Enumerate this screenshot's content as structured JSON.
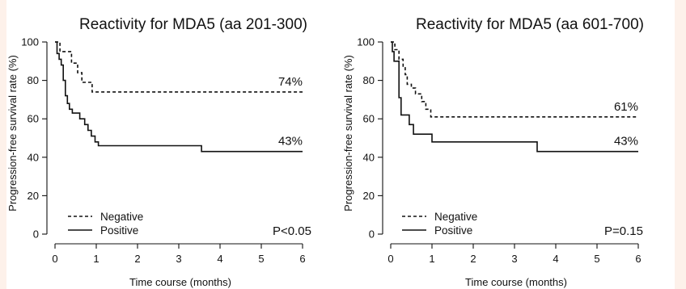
{
  "chart_data": [
    {
      "type": "line",
      "title": "Reactivity for MDA5 (aa 201-300)",
      "xlabel": "Time course (months)",
      "ylabel": "Progression-free survival rate (%)",
      "xlim": [
        0,
        6
      ],
      "ylim": [
        0,
        100
      ],
      "x_ticks": [
        0,
        1,
        2,
        3,
        4,
        5,
        6
      ],
      "y_ticks": [
        0,
        20,
        40,
        60,
        80,
        100
      ],
      "series": [
        {
          "name": "Negative",
          "style": "dashed",
          "color": "#111111",
          "points": [
            [
              0,
              100
            ],
            [
              0.12,
              100
            ],
            [
              0.12,
              95
            ],
            [
              0.4,
              95
            ],
            [
              0.4,
              89
            ],
            [
              0.55,
              89
            ],
            [
              0.55,
              84
            ],
            [
              0.65,
              84
            ],
            [
              0.65,
              79
            ],
            [
              0.9,
              79
            ],
            [
              0.9,
              74
            ],
            [
              6,
              74
            ]
          ],
          "end_label": "74%"
        },
        {
          "name": "Positive",
          "style": "solid",
          "color": "#111111",
          "points": [
            [
              0,
              100
            ],
            [
              0.05,
              100
            ],
            [
              0.05,
              94
            ],
            [
              0.1,
              94
            ],
            [
              0.1,
              91
            ],
            [
              0.15,
              91
            ],
            [
              0.15,
              88
            ],
            [
              0.2,
              88
            ],
            [
              0.2,
              80
            ],
            [
              0.25,
              80
            ],
            [
              0.25,
              72
            ],
            [
              0.3,
              72
            ],
            [
              0.3,
              68
            ],
            [
              0.35,
              68
            ],
            [
              0.35,
              65
            ],
            [
              0.42,
              65
            ],
            [
              0.42,
              63
            ],
            [
              0.6,
              63
            ],
            [
              0.6,
              60
            ],
            [
              0.72,
              60
            ],
            [
              0.72,
              57
            ],
            [
              0.8,
              57
            ],
            [
              0.8,
              54
            ],
            [
              0.88,
              54
            ],
            [
              0.88,
              51
            ],
            [
              0.97,
              51
            ],
            [
              0.97,
              48
            ],
            [
              1.05,
              48
            ],
            [
              1.05,
              46
            ],
            [
              3.55,
              46
            ],
            [
              3.55,
              43
            ],
            [
              6,
              43
            ]
          ],
          "end_label": "43%"
        }
      ],
      "legend": [
        "Negative",
        "Positive"
      ],
      "legend_position": "bottom-left",
      "p_value": "P<0.05"
    },
    {
      "type": "line",
      "title": "Reactivity for MDA5 (aa 601-700)",
      "xlabel": "Time course (months)",
      "ylabel": "Progression-free survival rate (%)",
      "xlim": [
        0,
        6
      ],
      "ylim": [
        0,
        100
      ],
      "x_ticks": [
        0,
        1,
        2,
        3,
        4,
        5,
        6
      ],
      "y_ticks": [
        0,
        20,
        40,
        60,
        80,
        100
      ],
      "series": [
        {
          "name": "Negative",
          "style": "dashed",
          "color": "#111111",
          "points": [
            [
              0,
              100
            ],
            [
              0.1,
              100
            ],
            [
              0.1,
              96
            ],
            [
              0.2,
              96
            ],
            [
              0.2,
              91
            ],
            [
              0.3,
              91
            ],
            [
              0.3,
              87
            ],
            [
              0.35,
              87
            ],
            [
              0.35,
              83
            ],
            [
              0.4,
              83
            ],
            [
              0.4,
              78
            ],
            [
              0.5,
              78
            ],
            [
              0.5,
              76
            ],
            [
              0.6,
              76
            ],
            [
              0.6,
              73
            ],
            [
              0.75,
              73
            ],
            [
              0.75,
              69
            ],
            [
              0.85,
              69
            ],
            [
              0.85,
              65
            ],
            [
              0.97,
              65
            ],
            [
              0.97,
              61
            ],
            [
              6,
              61
            ]
          ],
          "end_label": "61%"
        },
        {
          "name": "Positive",
          "style": "solid",
          "color": "#111111",
          "points": [
            [
              0,
              100
            ],
            [
              0.04,
              100
            ],
            [
              0.04,
              95
            ],
            [
              0.08,
              95
            ],
            [
              0.08,
              90
            ],
            [
              0.2,
              90
            ],
            [
              0.2,
              71
            ],
            [
              0.25,
              71
            ],
            [
              0.25,
              62
            ],
            [
              0.45,
              62
            ],
            [
              0.45,
              57
            ],
            [
              0.55,
              57
            ],
            [
              0.55,
              52
            ],
            [
              1.0,
              52
            ],
            [
              1.0,
              48
            ],
            [
              3.55,
              48
            ],
            [
              3.55,
              43
            ],
            [
              6,
              43
            ]
          ],
          "end_label": "43%"
        }
      ],
      "legend": [
        "Negative",
        "Positive"
      ],
      "legend_position": "bottom-left",
      "p_value": "P=0.15"
    }
  ]
}
